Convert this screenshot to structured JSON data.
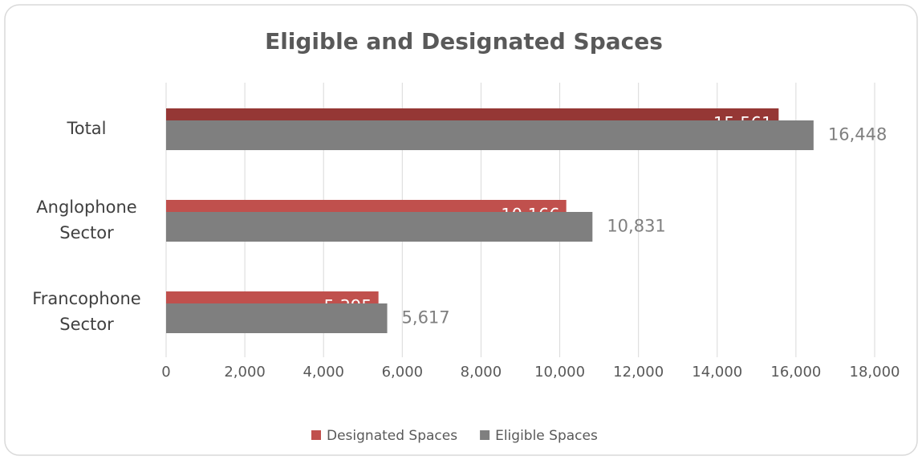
{
  "chart_data": {
    "type": "hbar",
    "title": "Eligible and Designated Spaces",
    "categories": [
      "Total",
      "Anglophone Sector",
      "Francophone Sector"
    ],
    "series": [
      {
        "name": "Designated Spaces",
        "color": "#c0504d",
        "colors": [
          "#953735",
          "#c0504d",
          "#c0504d"
        ],
        "values": [
          15561,
          10166,
          5395
        ],
        "value_labels": [
          "15,561",
          "10,166",
          "5,395"
        ]
      },
      {
        "name": "Eligible Spaces",
        "color": "#7f7f7f",
        "values": [
          16448,
          10831,
          5617
        ],
        "value_labels": [
          "16,448",
          "10,831",
          "5,617"
        ]
      }
    ],
    "xlim": [
      0,
      18000
    ],
    "xticks": [
      0,
      {
        "value": 2000,
        "label": "2,000"
      },
      {
        "value": 4000,
        "label": "4,000"
      },
      {
        "value": 6000,
        "label": "6,000"
      },
      {
        "value": 8000,
        "label": "8,000"
      },
      {
        "value": 10000,
        "label": "10,000"
      },
      {
        "value": 12000,
        "label": "12,000"
      },
      {
        "value": 14000,
        "label": "14,000"
      },
      {
        "value": 16000,
        "label": "16,000"
      },
      {
        "value": 18000,
        "label": "18,000"
      }
    ],
    "grid": true,
    "legend": "bottom"
  }
}
